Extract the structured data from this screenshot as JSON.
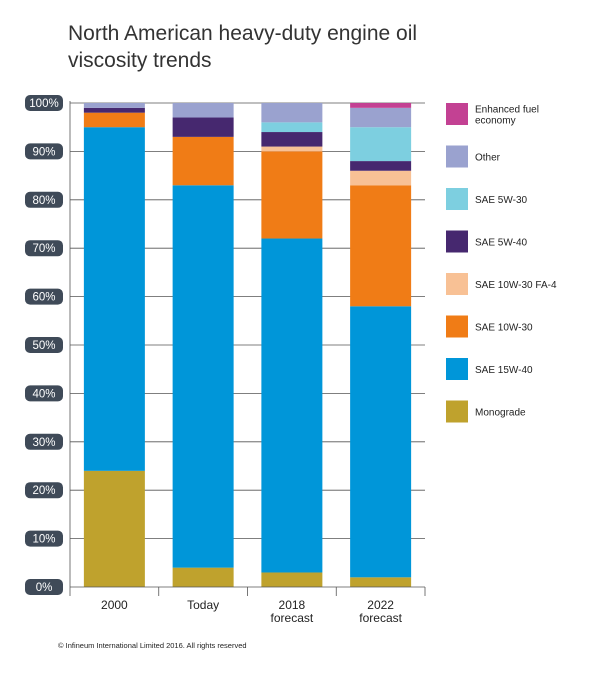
{
  "title": "North American heavy-duty engine oil viscosity trends",
  "copyright": "© Infineum International Limited 2016. All rights reserved",
  "chart_data": {
    "type": "bar",
    "stacked": true,
    "title": "North American heavy-duty engine oil viscosity trends",
    "categories": [
      [
        "2000"
      ],
      [
        "Today"
      ],
      [
        "2018",
        "forecast"
      ],
      [
        "2022",
        "forecast"
      ]
    ],
    "ylim": [
      0,
      100
    ],
    "yticks": [
      "0%",
      "10%",
      "20%",
      "30%",
      "40%",
      "50%",
      "60%",
      "70%",
      "80%",
      "90%",
      "100%"
    ],
    "grid": true,
    "legend_position": "right",
    "series": [
      {
        "name": "Monograde",
        "color": "#bfa22d",
        "values": [
          24,
          4,
          3,
          2
        ]
      },
      {
        "name": "SAE 15W-40",
        "color": "#0096d9",
        "values": [
          71,
          79,
          69,
          56
        ]
      },
      {
        "name": "SAE 10W-30",
        "color": "#f07c16",
        "values": [
          3,
          10,
          18,
          25
        ]
      },
      {
        "name": "SAE 10W-30 FA-4",
        "color": "#f8c195",
        "values": [
          0,
          0,
          1,
          3
        ]
      },
      {
        "name": "SAE 5W-40",
        "color": "#46286f",
        "values": [
          1,
          4,
          3,
          2
        ]
      },
      {
        "name": "SAE 5W-30",
        "color": "#7dcfe0",
        "values": [
          0,
          0,
          2,
          7
        ]
      },
      {
        "name": "Other",
        "color": "#9aa2cf",
        "values": [
          1,
          3,
          4,
          4
        ]
      },
      {
        "name": "Enhanced fuel economy",
        "color": "#c34193",
        "values": [
          0,
          0,
          0,
          1
        ]
      }
    ],
    "legend": [
      {
        "lines": [
          "Enhanced fuel",
          "economy"
        ],
        "color": "#c34193"
      },
      {
        "lines": [
          "Other"
        ],
        "color": "#9aa2cf"
      },
      {
        "lines": [
          "SAE 5W-30"
        ],
        "color": "#7dcfe0"
      },
      {
        "lines": [
          "SAE 5W-40"
        ],
        "color": "#46286f"
      },
      {
        "lines": [
          "SAE 10W-30 FA-4"
        ],
        "color": "#f8c195"
      },
      {
        "lines": [
          "SAE 10W-30"
        ],
        "color": "#f07c16"
      },
      {
        "lines": [
          "SAE 15W-40"
        ],
        "color": "#0096d9"
      },
      {
        "lines": [
          "Monograde"
        ],
        "color": "#bfa22d"
      }
    ]
  }
}
